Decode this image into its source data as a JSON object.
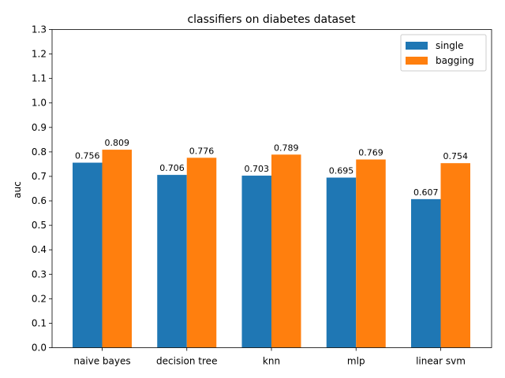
{
  "chart_data": {
    "type": "bar",
    "title": "classifiers on diabetes dataset",
    "xlabel": "",
    "ylabel": "auc",
    "categories": [
      "naive bayes",
      "decision tree",
      "knn",
      "mlp",
      "linear svm"
    ],
    "series": [
      {
        "name": "single",
        "values": [
          0.756,
          0.706,
          0.703,
          0.695,
          0.607
        ],
        "value_labels": [
          "0.756",
          "0.706",
          "0.703",
          "0.695",
          "0.607"
        ],
        "color": "#1f77b4"
      },
      {
        "name": "bagging",
        "values": [
          0.809,
          0.776,
          0.789,
          0.769,
          0.754
        ],
        "value_labels": [
          "0.809",
          "0.776",
          "0.789",
          "0.769",
          "0.754"
        ],
        "color": "#ff7f0e"
      }
    ],
    "ylim": [
      0,
      1.3
    ],
    "yticks": [
      0.0,
      0.1,
      0.2,
      0.3,
      0.4,
      0.5,
      0.6,
      0.7,
      0.8,
      0.9,
      1.0,
      1.1,
      1.2,
      1.3
    ],
    "ytick_labels": [
      "0.0",
      "0.1",
      "0.2",
      "0.3",
      "0.4",
      "0.5",
      "0.6",
      "0.7",
      "0.8",
      "0.9",
      "1.0",
      "1.1",
      "1.2",
      "1.3"
    ],
    "grid": false,
    "legend_position": "top-right"
  }
}
